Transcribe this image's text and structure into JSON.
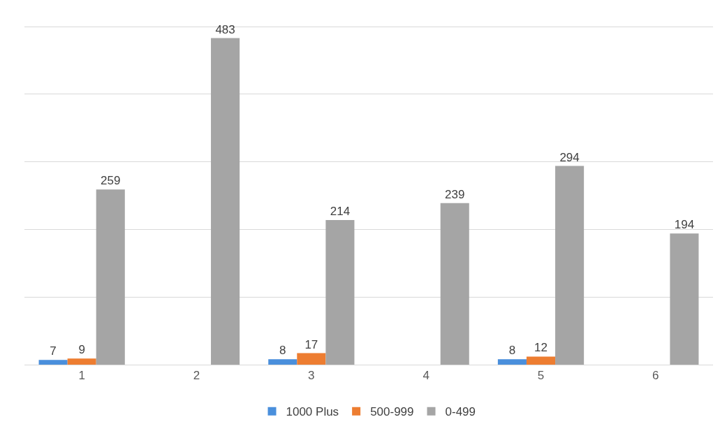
{
  "chart_data": {
    "type": "bar",
    "categories": [
      "1",
      "2",
      "3",
      "4",
      "5",
      "6"
    ],
    "series": [
      {
        "name": "1000 Plus",
        "color": "#4a8fdc",
        "values": [
          7,
          null,
          8,
          null,
          8,
          null
        ]
      },
      {
        "name": "500-999",
        "color": "#ed7d31",
        "values": [
          9,
          null,
          17,
          null,
          12,
          null
        ]
      },
      {
        "name": "0-499",
        "color": "#a5a5a5",
        "values": [
          259,
          483,
          214,
          239,
          294,
          194
        ]
      }
    ],
    "grid": "y",
    "legend": "bottom",
    "data_labels": true,
    "tick_labels": "x"
  }
}
